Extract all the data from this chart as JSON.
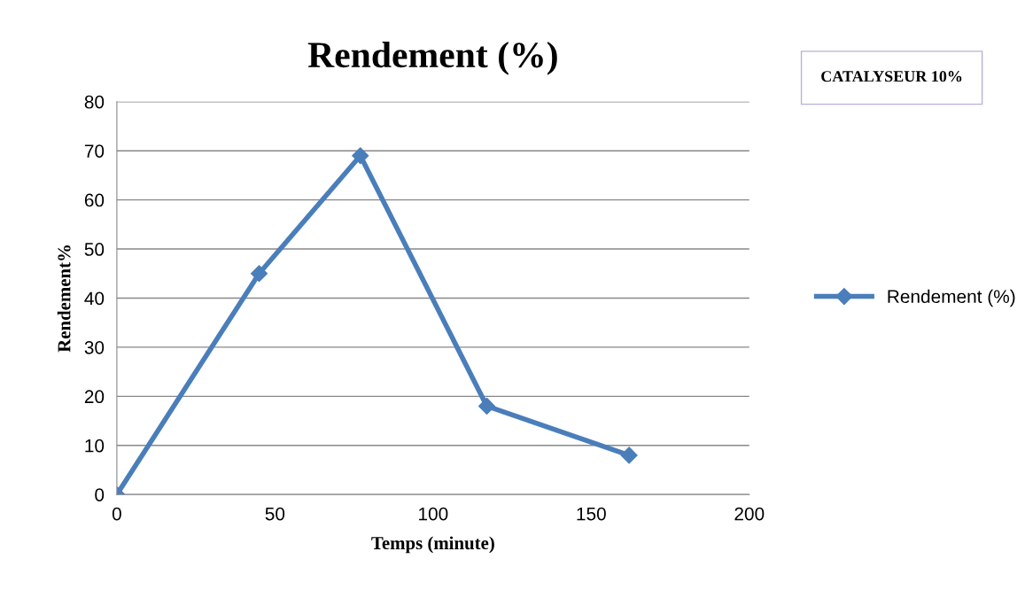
{
  "chart_data": {
    "type": "line",
    "title": "Rendement (%)",
    "xlabel": "Temps (minute)",
    "ylabel": "Rendement%",
    "annotations": [
      "CATALYSEUR 10%"
    ],
    "x": [
      0,
      45,
      77,
      117,
      162
    ],
    "series": [
      {
        "name": "Rendement (%)",
        "color": "#4a7ebb",
        "values": [
          0,
          45,
          69,
          18,
          8
        ]
      }
    ],
    "xlim": [
      0,
      200
    ],
    "xticks": [
      0,
      50,
      100,
      150,
      200
    ],
    "ylim": [
      0,
      80
    ],
    "yticks": [
      0,
      10,
      20,
      30,
      40,
      50,
      60,
      70,
      80
    ],
    "grid": "y",
    "legend": "right",
    "marker": "diamond",
    "line_style": "solid"
  }
}
